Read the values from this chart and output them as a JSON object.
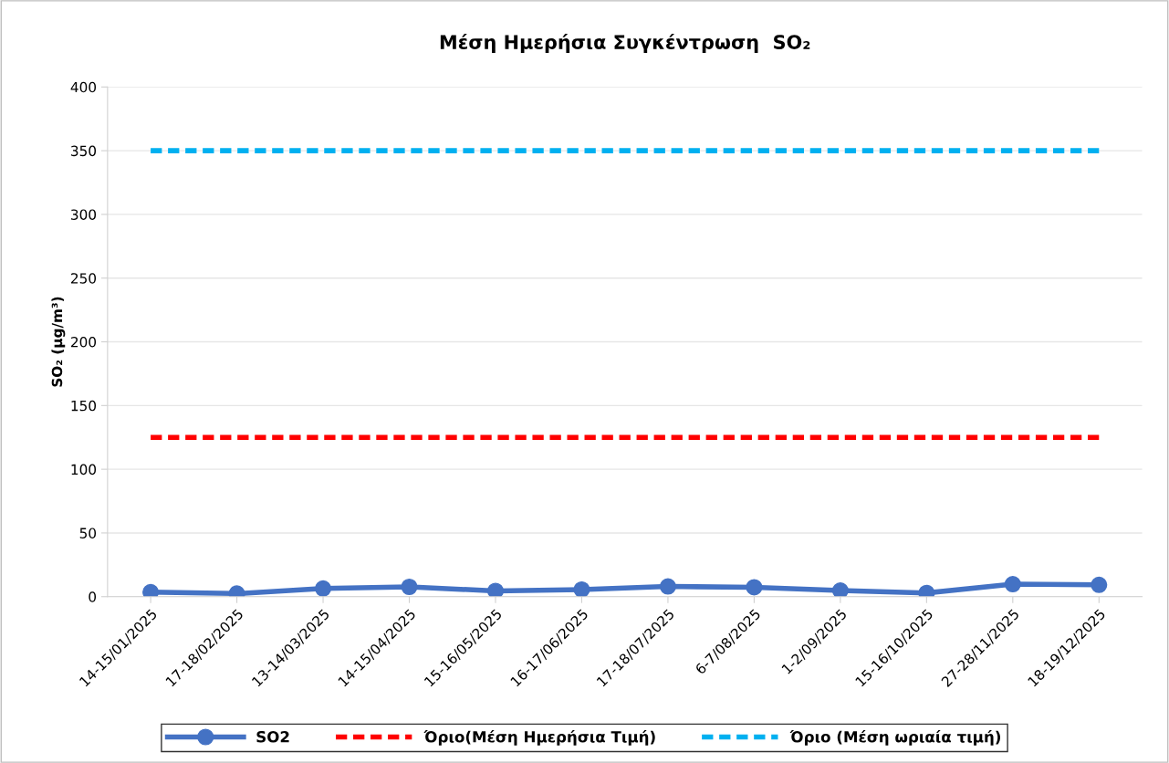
{
  "chart_data": {
    "type": "line",
    "title": "Μέση Ημερήσια Συγκέντρωση  SO₂",
    "ylabel": "SO₂ (μg/m³)",
    "categories": [
      "14-15/01/2025",
      "17-18/02/2025",
      "13-14/03/2025",
      "14-15/04/2025",
      "15-16/05/2025",
      "16-17/06/2025",
      "17-18/07/2025",
      "6-7/08/2025",
      "1-2/09/2025",
      "15-16/10/2025",
      "27-28/11/2025",
      "18-19/12/2025"
    ],
    "series": [
      {
        "name": "SO2",
        "color": "#4472c4",
        "marker": "circle",
        "line_style": "solid",
        "values": [
          3.5,
          2.4,
          6.4,
          7.7,
          4.5,
          5.6,
          8.0,
          7.4,
          4.8,
          2.9,
          9.8,
          9.3
        ]
      },
      {
        "name": "Όριο(Μέση Ημερήσια Τιμή)",
        "color": "#ff0000",
        "marker": "none",
        "line_style": "dashed",
        "values": [
          125,
          125,
          125,
          125,
          125,
          125,
          125,
          125,
          125,
          125,
          125,
          125
        ]
      },
      {
        "name": "Όριο (Μέση ωριαία τιμή)",
        "color": "#00b0f0",
        "marker": "none",
        "line_style": "dashed",
        "values": [
          350,
          350,
          350,
          350,
          350,
          350,
          350,
          350,
          350,
          350,
          350,
          350
        ]
      }
    ],
    "ylim": [
      0,
      400
    ],
    "yticks": [
      0,
      50,
      100,
      150,
      200,
      250,
      300,
      350,
      400
    ],
    "grid": "y",
    "legend": "bottom"
  }
}
